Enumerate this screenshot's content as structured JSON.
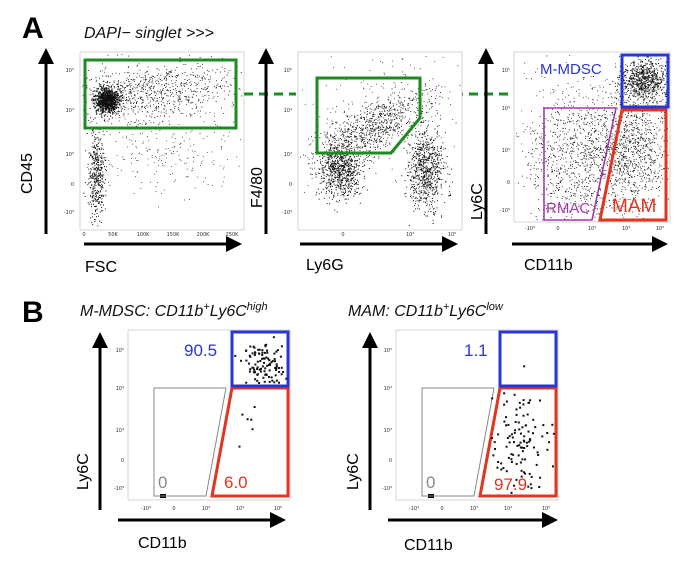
{
  "panel_a": {
    "letter": "A",
    "title": "DAPI− singlet >>>",
    "plots": [
      {
        "ylabel": "CD45",
        "xlabel": "FSC",
        "xticks": [
          "0",
          "50K",
          "100K",
          "150K",
          "200K",
          "250K"
        ],
        "yticks": [
          "10⁵",
          "10⁴",
          "10³",
          "0",
          "-10³"
        ]
      },
      {
        "ylabel": "F4/80",
        "xlabel": "Ly6G",
        "xticks": [
          "0",
          "10⁴",
          "10⁵"
        ],
        "yticks": [
          "10⁵",
          "10⁴",
          "10³",
          "0",
          "-10³"
        ]
      },
      {
        "ylabel": "Ly6C",
        "xlabel": "CD11b",
        "xticks": [
          "-10³",
          "0",
          "10³",
          "10⁴",
          "10⁵"
        ],
        "yticks": [
          "10⁵",
          "10⁴",
          "10³",
          "0",
          "-10³"
        ],
        "gate_labels": {
          "mmdsc": "M-MDSC",
          "rmac": "RMAC",
          "mam": "MAM"
        }
      }
    ]
  },
  "panel_b": {
    "letter": "B",
    "plots": [
      {
        "title_prefix": "M-MDSC: CD11b",
        "title_sup1": "+",
        "title_mid": "Ly6C",
        "title_sup2": "high",
        "ylabel": "Ly6C",
        "xlabel": "CD11b",
        "xticks": [
          "-10³",
          "0",
          "10³",
          "10⁴",
          "10⁵"
        ],
        "yticks": [
          "10⁵",
          "10⁴",
          "10³",
          "0",
          "-10³"
        ],
        "pct_blue": "90.5",
        "pct_gray": "0",
        "pct_red": "6.0"
      },
      {
        "title_prefix": "MAM: CD11b",
        "title_sup1": "+",
        "title_mid": "Ly6C",
        "title_sup2": "low",
        "ylabel": "Ly6C",
        "xlabel": "CD11b",
        "xticks": [
          "-10³",
          "0",
          "10³",
          "10⁴",
          "10⁵"
        ],
        "yticks": [
          "10⁵",
          "10⁴",
          "10³",
          "0",
          "-10³"
        ],
        "pct_blue": "1.1",
        "pct_gray": "0",
        "pct_red": "97.9"
      }
    ]
  },
  "colors": {
    "green": "#1e8a22",
    "blue": "#2a35d8",
    "red": "#e3341f",
    "purple": "#a23aa8",
    "gray": "#8a8a8a"
  }
}
